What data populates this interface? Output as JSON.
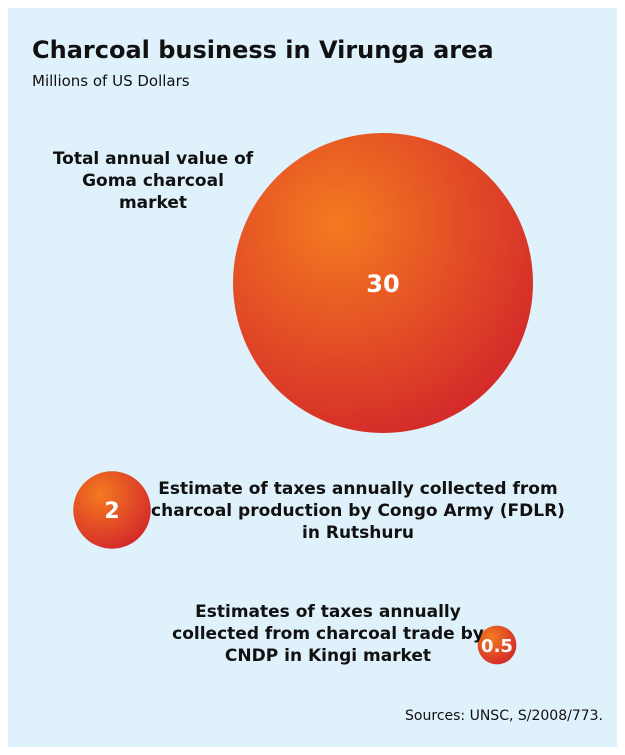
{
  "chart_data": {
    "type": "bubble",
    "title": "Charcoal business in Virunga area",
    "subtitle": "Millions of US Dollars",
    "categories": [
      "Total annual value of Goma charcoal market",
      "Estimate of taxes annually collected from charcoal production by Congo Army (FDLR) in Rutshuru",
      "Estimates of taxes annually collected from charcoal trade by CNDP in Kingi market"
    ],
    "values": [
      30,
      2,
      0.5
    ],
    "color": "#d42a2a",
    "highlight": "#f47a20",
    "source": "Sources: UNSC, S/2008/773."
  }
}
